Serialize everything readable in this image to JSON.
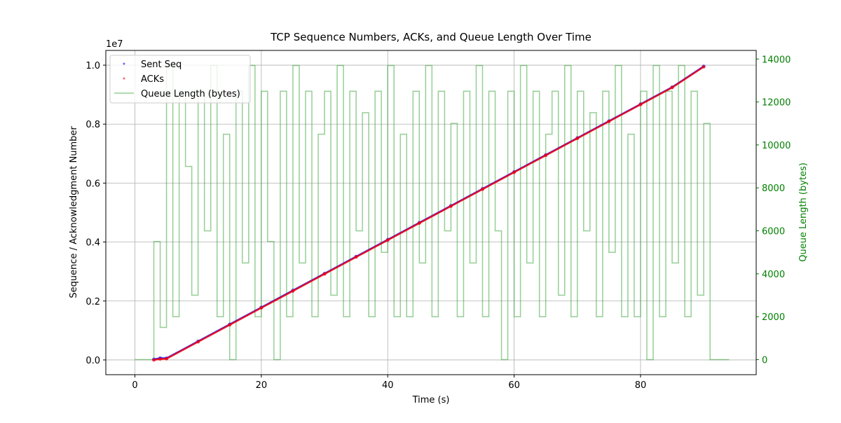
{
  "chart_data": {
    "type": "scatter",
    "title": "TCP Sequence Numbers, ACKs, and Queue Length Over Time",
    "x_label": "Time (s)",
    "y_label": "Sequence / Acknowledgment Number",
    "y2_label": "Queue Length (bytes)",
    "y_offset_label": "1e7",
    "xlim": [
      -4.6,
      98.3
    ],
    "xticks": [
      0,
      20,
      40,
      60,
      80
    ],
    "ylim": [
      -500000,
      10500000
    ],
    "yticks": [
      {
        "value": 0,
        "label": "0.0"
      },
      {
        "value": 2000000,
        "label": "0.2"
      },
      {
        "value": 4000000,
        "label": "0.4"
      },
      {
        "value": 6000000,
        "label": "0.6"
      },
      {
        "value": 8000000,
        "label": "0.8"
      },
      {
        "value": 10000000,
        "label": "1.0"
      }
    ],
    "y2lim": [
      -700,
      14400
    ],
    "y2ticks": [
      0,
      2000,
      4000,
      6000,
      8000,
      10000,
      12000,
      14000
    ],
    "y2_color": "green",
    "grid": true,
    "legend": "upper left",
    "series": [
      {
        "name": "Sent Seq",
        "type": "scatter",
        "color": "#0000ff",
        "x": [
          3,
          4,
          5,
          10,
          15,
          20,
          25,
          30,
          35,
          40,
          45,
          50,
          55,
          60,
          65,
          70,
          75,
          80,
          85,
          90
        ],
        "values": [
          20000,
          60000,
          57000,
          632000,
          1207000,
          1782000,
          2356000,
          2931000,
          3506000,
          4080000,
          4655000,
          5230000,
          5805000,
          6379000,
          6954000,
          7529000,
          8103000,
          8678000,
          9253000,
          9960000
        ]
      },
      {
        "name": "ACKs",
        "type": "scatter",
        "color": "#ff0000",
        "x": [
          3,
          4,
          5,
          10,
          15,
          20,
          25,
          30,
          35,
          40,
          45,
          50,
          55,
          60,
          65,
          70,
          75,
          80,
          85,
          90
        ],
        "values": [
          0,
          30000,
          40000,
          615000,
          1190000,
          1765000,
          2340000,
          2915000,
          3490000,
          4065000,
          4640000,
          5215000,
          5790000,
          6365000,
          6940000,
          7515000,
          8090000,
          8665000,
          9240000,
          9945000
        ]
      },
      {
        "name": "Queue Length (bytes)",
        "type": "step",
        "color": "#2ca02c",
        "axis": "y2",
        "x": [
          0,
          1,
          2,
          3,
          4,
          5,
          6,
          7,
          8,
          9,
          10,
          11,
          12,
          13,
          14,
          15,
          16,
          17,
          18,
          19,
          20,
          21,
          22,
          23,
          24,
          25,
          26,
          27,
          28,
          29,
          30,
          31,
          32,
          33,
          34,
          35,
          36,
          37,
          38,
          39,
          40,
          41,
          42,
          43,
          44,
          45,
          46,
          47,
          48,
          49,
          50,
          51,
          52,
          53,
          54,
          55,
          56,
          57,
          58,
          59,
          60,
          61,
          62,
          63,
          64,
          65,
          66,
          67,
          68,
          69,
          70,
          71,
          72,
          73,
          74,
          75,
          76,
          77,
          78,
          79,
          80,
          81,
          82,
          83,
          84,
          85,
          86,
          87,
          88,
          89,
          90,
          91,
          92,
          93,
          94
        ],
        "values": [
          0,
          0,
          0,
          5500,
          1500,
          13700,
          2000,
          12500,
          9000,
          3000,
          12500,
          6000,
          13700,
          2000,
          10500,
          0,
          12500,
          4500,
          13700,
          2000,
          12500,
          5500,
          0,
          12500,
          2000,
          13700,
          4500,
          12500,
          2000,
          10500,
          12500,
          3000,
          13700,
          2000,
          12500,
          6000,
          11500,
          2000,
          12500,
          5000,
          13700,
          2000,
          10500,
          2000,
          12500,
          4500,
          13700,
          2000,
          12500,
          6000,
          11000,
          2000,
          12500,
          4500,
          13700,
          2000,
          12500,
          6000,
          0,
          12500,
          2000,
          13700,
          4500,
          12500,
          2000,
          10500,
          12500,
          3000,
          13700,
          2000,
          12500,
          6000,
          11500,
          2000,
          12500,
          5000,
          13700,
          2000,
          10500,
          2000,
          12500,
          0,
          13700,
          2000,
          12500,
          4500,
          13700,
          2000,
          12500,
          3000,
          11000,
          0,
          0,
          0,
          0
        ]
      }
    ]
  }
}
